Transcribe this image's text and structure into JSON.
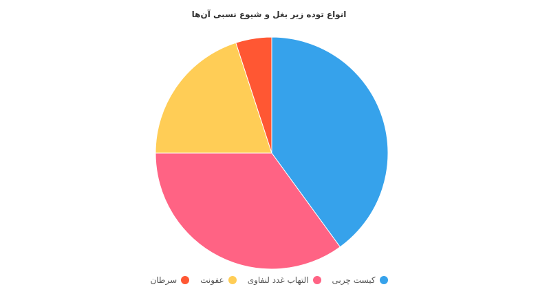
{
  "chart_data": {
    "type": "pie",
    "title": "انواع توده زیر بغل و شیوع نسبی آن‌ها",
    "categories": [
      "کیست چربی",
      "التهاب غدد لنفاوی",
      "عفونت",
      "سرطان"
    ],
    "values": [
      40,
      35,
      20,
      5
    ],
    "colors": [
      "#36a2eb",
      "#ff6384",
      "#ffcd56",
      "#ff5733"
    ],
    "legend_position": "bottom"
  }
}
